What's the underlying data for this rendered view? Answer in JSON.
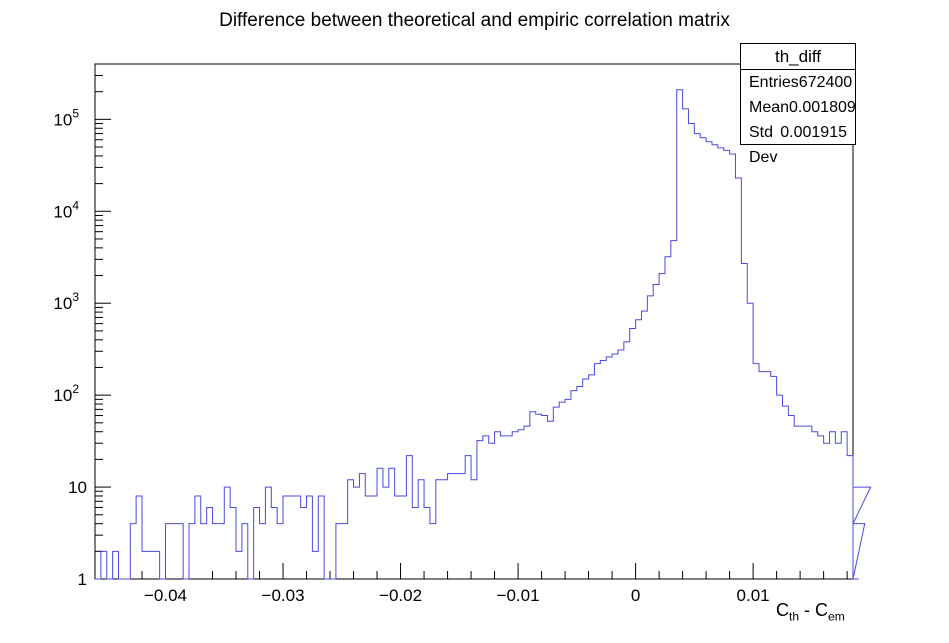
{
  "title": "Difference between theoretical and empiric correlation matrix",
  "stats": {
    "name": "th_diff",
    "rows": [
      {
        "label": "Entries",
        "value": "672400"
      },
      {
        "label": "Mean",
        "value": "0.001809"
      },
      {
        "label": "Std Dev",
        "value": "0.001915"
      }
    ]
  },
  "xaxis": {
    "main": "C",
    "sub1": "th",
    "mid": " - ",
    "main2": "C",
    "sub2": "em"
  },
  "colors": {
    "line": "#4a4ae0",
    "axis": "#000000"
  },
  "chart_data": {
    "type": "histogram",
    "title": "Difference between theoretical and empiric correlation matrix",
    "xlabel": "C_th - C_em",
    "ylabel": "",
    "xlim": [
      -0.046,
      0.0185
    ],
    "ylim": [
      1,
      400000
    ],
    "yscale": "log",
    "bin_width": 0.0005,
    "x_start": -0.046,
    "xticks": [
      {
        "v": -0.04,
        "label": "−0.04"
      },
      {
        "v": -0.03,
        "label": "−0.03"
      },
      {
        "v": -0.02,
        "label": "−0.02"
      },
      {
        "v": -0.01,
        "label": "−0.01"
      },
      {
        "v": 0,
        "label": "0"
      },
      {
        "v": 0.01,
        "label": "0.01"
      }
    ],
    "yticks": [
      {
        "v": 1,
        "base": "1",
        "exp": ""
      },
      {
        "v": 10,
        "base": "10",
        "exp": ""
      },
      {
        "v": 100,
        "base": "10",
        "exp": "2"
      },
      {
        "v": 1000,
        "base": "10",
        "exp": "3"
      },
      {
        "v": 10000,
        "base": "10",
        "exp": "4"
      },
      {
        "v": 100000,
        "base": "10",
        "exp": "5"
      }
    ],
    "values": [
      0,
      2,
      0,
      2,
      0,
      0,
      4,
      8,
      2,
      2,
      2,
      0,
      4,
      4,
      4,
      1,
      4,
      8,
      4,
      6,
      4,
      4,
      10,
      6,
      2,
      4,
      1,
      6,
      4,
      10,
      6,
      4,
      8,
      8,
      8,
      6,
      8,
      2,
      8,
      1,
      1,
      4,
      4,
      12,
      10,
      14,
      8,
      8,
      16,
      10,
      16,
      8,
      8,
      22,
      6,
      12,
      6,
      4,
      12,
      12,
      14,
      14,
      14,
      22,
      12,
      32,
      36,
      30,
      40,
      36,
      36,
      40,
      42,
      46,
      66,
      62,
      60,
      52,
      74,
      84,
      90,
      112,
      124,
      150,
      166,
      220,
      238,
      260,
      280,
      310,
      380,
      530,
      660,
      820,
      1200,
      1600,
      2100,
      3200,
      4800,
      210000,
      130000,
      90000,
      70000,
      63000,
      57000,
      53000,
      49000,
      46000,
      42000,
      23000,
      2700,
      1000,
      220,
      180,
      180,
      160,
      100,
      76,
      60,
      46,
      46,
      46,
      40,
      36,
      30,
      40,
      30,
      40,
      22,
      0,
      0,
      4,
      10
    ]
  }
}
